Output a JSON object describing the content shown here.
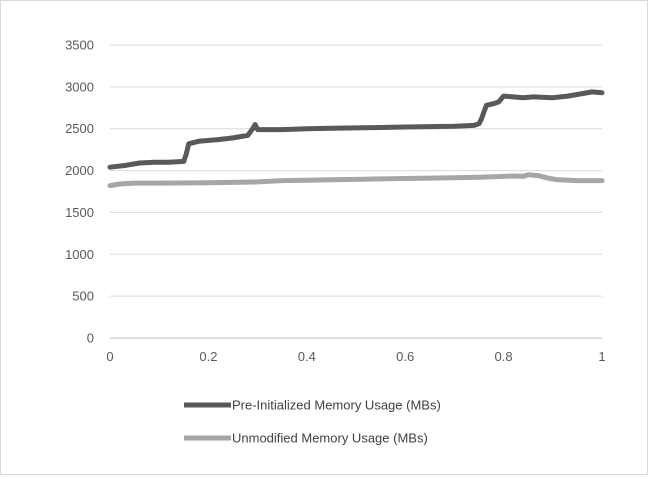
{
  "chart_data": {
    "type": "line",
    "title": "",
    "xlabel": "",
    "ylabel": "",
    "xlim": [
      0,
      1
    ],
    "ylim": [
      0,
      3500
    ],
    "x_ticks": [
      0,
      0.2,
      0.4,
      0.6,
      0.8,
      1
    ],
    "x_tick_labels": [
      "0",
      "0.2",
      "0.4",
      "0.6",
      "0.8",
      "1"
    ],
    "y_ticks": [
      0,
      500,
      1000,
      1500,
      2000,
      2500,
      3000,
      3500
    ],
    "y_tick_labels": [
      "0",
      "500",
      "1000",
      "1500",
      "2000",
      "2500",
      "3000",
      "3500"
    ],
    "grid": "horizontal",
    "legend_position": "bottom",
    "series": [
      {
        "name": "Pre-Initialized Memory Usage (MBs)",
        "color": "#595959",
        "points": [
          [
            0.0,
            2040
          ],
          [
            0.03,
            2060
          ],
          [
            0.06,
            2090
          ],
          [
            0.09,
            2100
          ],
          [
            0.12,
            2100
          ],
          [
            0.15,
            2110
          ],
          [
            0.155,
            2200
          ],
          [
            0.16,
            2320
          ],
          [
            0.18,
            2350
          ],
          [
            0.22,
            2370
          ],
          [
            0.25,
            2390
          ],
          [
            0.28,
            2420
          ],
          [
            0.29,
            2500
          ],
          [
            0.295,
            2550
          ],
          [
            0.3,
            2490
          ],
          [
            0.35,
            2490
          ],
          [
            0.4,
            2500
          ],
          [
            0.45,
            2505
          ],
          [
            0.5,
            2510
          ],
          [
            0.55,
            2515
          ],
          [
            0.6,
            2520
          ],
          [
            0.65,
            2525
          ],
          [
            0.7,
            2530
          ],
          [
            0.74,
            2540
          ],
          [
            0.75,
            2560
          ],
          [
            0.755,
            2620
          ],
          [
            0.765,
            2780
          ],
          [
            0.78,
            2800
          ],
          [
            0.79,
            2820
          ],
          [
            0.8,
            2890
          ],
          [
            0.82,
            2880
          ],
          [
            0.84,
            2870
          ],
          [
            0.86,
            2880
          ],
          [
            0.9,
            2870
          ],
          [
            0.93,
            2890
          ],
          [
            0.96,
            2920
          ],
          [
            0.98,
            2940
          ],
          [
            1.0,
            2930
          ]
        ]
      },
      {
        "name": "Unmodified Memory Usage (MBs)",
        "color": "#a6a6a6",
        "points": [
          [
            0.0,
            1820
          ],
          [
            0.02,
            1840
          ],
          [
            0.05,
            1850
          ],
          [
            0.1,
            1850
          ],
          [
            0.2,
            1855
          ],
          [
            0.3,
            1865
          ],
          [
            0.35,
            1880
          ],
          [
            0.4,
            1885
          ],
          [
            0.45,
            1890
          ],
          [
            0.5,
            1895
          ],
          [
            0.55,
            1900
          ],
          [
            0.6,
            1905
          ],
          [
            0.65,
            1910
          ],
          [
            0.7,
            1915
          ],
          [
            0.75,
            1920
          ],
          [
            0.8,
            1930
          ],
          [
            0.82,
            1935
          ],
          [
            0.84,
            1930
          ],
          [
            0.85,
            1950
          ],
          [
            0.87,
            1940
          ],
          [
            0.89,
            1910
          ],
          [
            0.91,
            1890
          ],
          [
            0.95,
            1880
          ],
          [
            1.0,
            1880
          ]
        ]
      }
    ]
  }
}
